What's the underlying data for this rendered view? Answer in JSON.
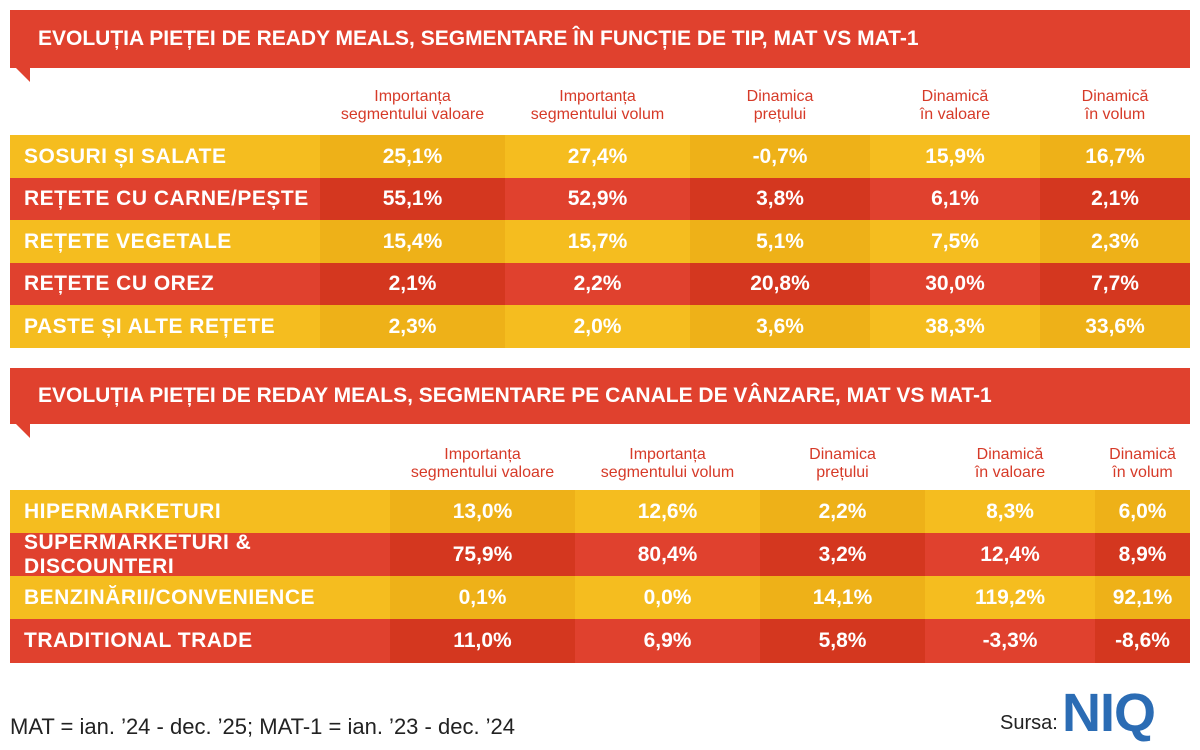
{
  "tables": [
    {
      "title": "EVOLUȚIA PIEȚEI DE READY MEALS, SEGMENTARE ÎN FUNCȚIE DE TIP, MAT VS MAT-1",
      "headers": [
        "Importanța\nsegmentului valoare",
        "Importanța\nsegmentului volum",
        "Dinamica\nprețului",
        "Dinamică\nîn valoare",
        "Dinamică\nîn volum"
      ],
      "rows": [
        {
          "label": "SOSURI ȘI SALATE",
          "values": [
            "25,1%",
            "27,4%",
            "-0,7%",
            "15,9%",
            "16,7%"
          ]
        },
        {
          "label": "REȚETE CU CARNE/PEȘTE",
          "values": [
            "55,1%",
            "52,9%",
            "3,8%",
            "6,1%",
            "2,1%"
          ]
        },
        {
          "label": "REȚETE VEGETALE",
          "values": [
            "15,4%",
            "15,7%",
            "5,1%",
            "7,5%",
            "2,3%"
          ]
        },
        {
          "label": "REȚETE CU OREZ",
          "values": [
            "2,1%",
            "2,2%",
            "20,8%",
            "30,0%",
            "7,7%"
          ]
        },
        {
          "label": "PASTE ȘI ALTE REȚETE",
          "values": [
            "2,3%",
            "2,0%",
            "3,6%",
            "38,3%",
            "33,6%"
          ]
        }
      ]
    },
    {
      "title": "EVOLUȚIA PIEȚEI DE REDAY MEALS, SEGMENTARE PE CANALE DE VÂNZARE, MAT VS MAT-1",
      "headers": [
        "Importanța\nsegmentului valoare",
        "Importanța\nsegmentului volum",
        "Dinamica\nprețului",
        "Dinamică\nîn valoare",
        "Dinamică\nîn volum"
      ],
      "rows": [
        {
          "label": "HIPERMARKETURI",
          "values": [
            "13,0%",
            "12,6%",
            "2,2%",
            "8,3%",
            "6,0%"
          ]
        },
        {
          "label": "SUPERMARKETURI & DISCOUNTERI",
          "values": [
            "75,9%",
            "80,4%",
            "3,2%",
            "12,4%",
            "8,9%"
          ]
        },
        {
          "label": "BENZINĂRII/CONVENIENCE",
          "values": [
            "0,1%",
            "0,0%",
            "14,1%",
            "119,2%",
            "92,1%"
          ]
        },
        {
          "label": "TRADITIONAL TRADE",
          "values": [
            "11,0%",
            "6,9%",
            "5,8%",
            "-3,3%",
            "-8,6%"
          ]
        }
      ]
    }
  ],
  "footer": {
    "note": "MAT = ian. ’24 - dec. ’25; MAT-1 = ian. ’23 - dec. ’24",
    "source_label": "Sursa:",
    "logo": "NIQ"
  }
}
